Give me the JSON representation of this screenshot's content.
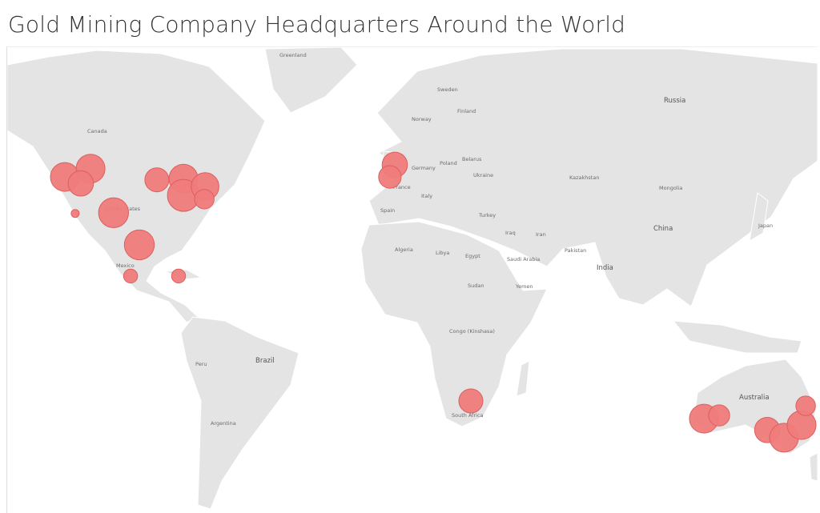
{
  "title": "Gold Mining Company Headquarters Around the World",
  "map": {
    "projection": "web-mercator",
    "land_color": "#e4e4e4",
    "water_color": "#ffffff",
    "mark_color": "#f07b7b",
    "labels": {
      "greenland": "Greenland",
      "canada": "Canada",
      "united_states": "United States",
      "mexico": "Mexico",
      "brazil": "Brazil",
      "peru": "Peru",
      "argentina": "Argentina",
      "sweden": "Sweden",
      "norway": "Norway",
      "finland": "Finland",
      "russia": "Russia",
      "germany": "Germany",
      "poland": "Poland",
      "belarus": "Belarus",
      "ukraine": "Ukraine",
      "france": "France",
      "italy": "Italy",
      "spain": "Spain",
      "turkey": "Turkey",
      "kazakhstan": "Kazakhstan",
      "mongolia": "Mongolia",
      "china": "China",
      "japan": "Japan",
      "iran": "Iran",
      "iraq": "Iraq",
      "pakistan": "Pakistan",
      "india": "India",
      "algeria": "Algeria",
      "libya": "Libya",
      "egypt": "Egypt",
      "saudi_arabia": "Saudi Arabia",
      "yemen": "Yemen",
      "sudan": "Sudan",
      "congo": "Congo (Kinshasa)",
      "south_africa": "South Africa",
      "australia": "Australia"
    }
  },
  "chart_data": {
    "type": "symbol-map",
    "title": "Gold Mining Company Headquarters Around the World",
    "size_encoding": "relative",
    "points": [
      {
        "lat": 48.6,
        "lon": -121.3,
        "size": 13
      },
      {
        "lat": 50.6,
        "lon": -111.8,
        "size": 13
      },
      {
        "lat": 47.0,
        "lon": -115.4,
        "size": 10
      },
      {
        "lat": 38.9,
        "lon": -117.5,
        "size": 1
      },
      {
        "lat": 39.1,
        "lon": -103.3,
        "size": 14
      },
      {
        "lat": 29.3,
        "lon": -93.8,
        "size": 14
      },
      {
        "lat": 18.8,
        "lon": -97.0,
        "size": 3
      },
      {
        "lat": 18.8,
        "lon": -79.3,
        "size": 3
      },
      {
        "lat": 47.9,
        "lon": -87.3,
        "size": 9
      },
      {
        "lat": 48.2,
        "lon": -77.5,
        "size": 13
      },
      {
        "lat": 43.9,
        "lon": -77.5,
        "size": 16
      },
      {
        "lat": 46.2,
        "lon": -69.5,
        "size": 12
      },
      {
        "lat": 42.9,
        "lon": -69.8,
        "size": 6
      },
      {
        "lat": 51.5,
        "lon": 0.6,
        "size": 10
      },
      {
        "lat": 48.6,
        "lon": -1.2,
        "size": 8
      },
      {
        "lat": -26.1,
        "lon": 28.7,
        "size": 9
      },
      {
        "lat": -31.8,
        "lon": 114.8,
        "size": 13
      },
      {
        "lat": -30.8,
        "lon": 120.4,
        "size": 7
      },
      {
        "lat": -35.3,
        "lon": 138.2,
        "size": 10
      },
      {
        "lat": -37.6,
        "lon": 144.4,
        "size": 13
      },
      {
        "lat": -33.8,
        "lon": 150.9,
        "size": 13
      },
      {
        "lat": -27.7,
        "lon": 152.4,
        "size": 6
      }
    ]
  }
}
